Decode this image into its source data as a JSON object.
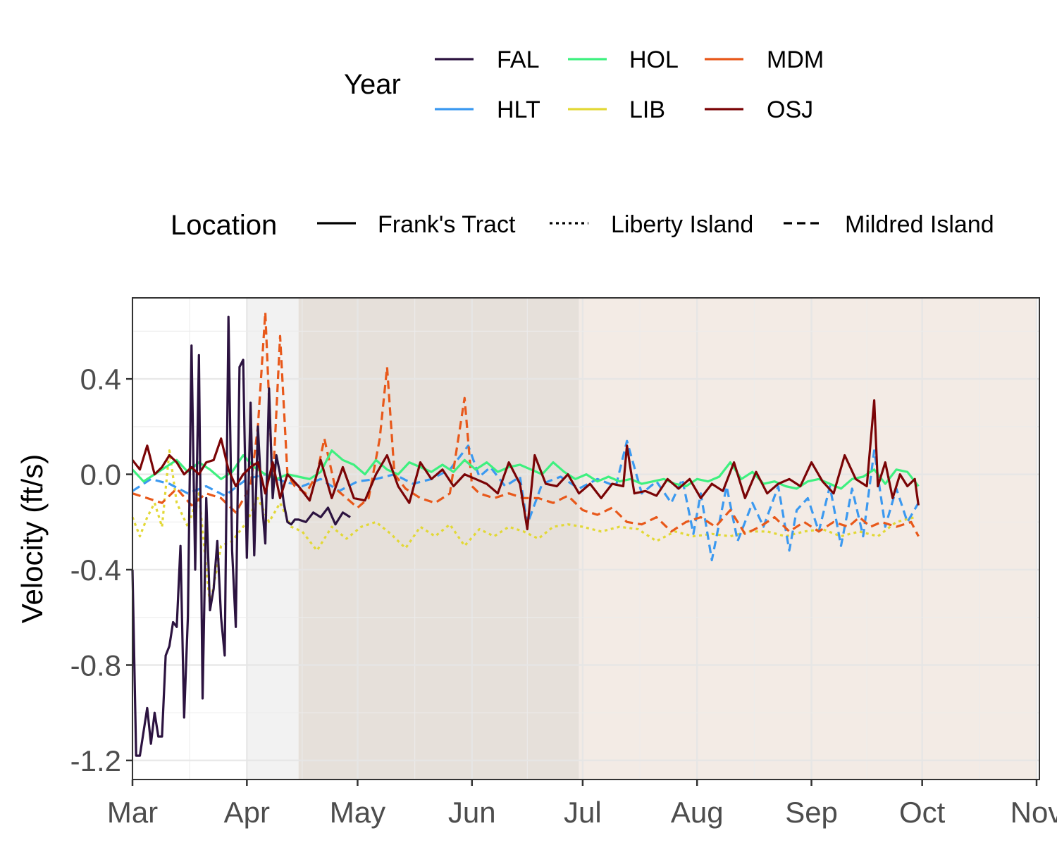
{
  "chart_data": {
    "type": "line",
    "xlabel": "",
    "ylabel": "Velocity (ft/s)",
    "ylim": [
      -1.28,
      0.74
    ],
    "xlim": [
      "Mar 1",
      "Nov 1"
    ],
    "x_ticks": [
      "Mar",
      "Apr",
      "May",
      "Jun",
      "Jul",
      "Aug",
      "Sep",
      "Oct",
      "Nov"
    ],
    "y_ticks": [
      "0.4",
      "0.0",
      "-0.4",
      "-0.8",
      "-1.2"
    ],
    "y_tick_values": [
      0.4,
      0.0,
      -0.4,
      -0.8,
      -1.2
    ],
    "grid": true,
    "legend_position": "top",
    "background_periods": [
      {
        "from": "Apr 1",
        "to": "Apr 15",
        "color": "#f2f2f2"
      },
      {
        "from": "Apr 15",
        "to": "Jun 30",
        "color": "#e6e0da"
      },
      {
        "from": "Jun 30",
        "to": "Nov 1",
        "color": "#f3ebe5"
      }
    ],
    "legends": [
      {
        "title": "Year",
        "entries": [
          {
            "label": "FAL",
            "color": "#2c1340"
          },
          {
            "label": "HOL",
            "color": "#3ef07f"
          },
          {
            "label": "MDM",
            "color": "#e8581a"
          },
          {
            "label": "HLT",
            "color": "#3b99f0"
          },
          {
            "label": "LIB",
            "color": "#e2d836"
          },
          {
            "label": "OSJ",
            "color": "#7a0406"
          }
        ]
      },
      {
        "title": "Location",
        "entries": [
          {
            "label": "Frank's Tract",
            "linetype": "solid"
          },
          {
            "label": "Liberty Island",
            "linetype": "dotted"
          },
          {
            "label": "Mildred Island",
            "linetype": "dashed"
          }
        ]
      }
    ],
    "series": [
      {
        "year": "LIB",
        "location": "Liberty Island",
        "color": "#e2d836",
        "linetype": "dotted",
        "x": [
          "Mar 1",
          "Mar 3",
          "Mar 5",
          "Mar 7",
          "Mar 9",
          "Mar 11",
          "Mar 13",
          "Mar 16",
          "Mar 19",
          "Mar 22",
          "Mar 25",
          "Mar 28",
          "Apr 1",
          "Apr 4",
          "Apr 7",
          "Apr 10",
          "Apr 13",
          "Apr 16",
          "Apr 20",
          "Apr 24",
          "Apr 28",
          "May 2",
          "May 6",
          "May 10",
          "May 14",
          "May 18",
          "May 22",
          "May 26",
          "May 30",
          "Jun 3",
          "Jun 7",
          "Jun 11",
          "Jun 15",
          "Jun 19",
          "Jun 23",
          "Jun 27",
          "Jul 1",
          "Jul 6",
          "Jul 11",
          "Jul 16",
          "Jul 21",
          "Jul 26",
          "Jul 31",
          "Aug 5",
          "Aug 10",
          "Aug 15",
          "Aug 20",
          "Aug 25",
          "Aug 30",
          "Sep 4",
          "Sep 9",
          "Sep 14",
          "Sep 19",
          "Sep 24",
          "Sep 29"
        ],
        "y": [
          -0.18,
          -0.26,
          -0.18,
          -0.12,
          -0.22,
          0.1,
          -0.12,
          -0.22,
          -0.08,
          -0.55,
          -0.3,
          -0.28,
          -0.2,
          -0.1,
          -0.2,
          -0.12,
          -0.22,
          -0.24,
          -0.32,
          -0.22,
          -0.27,
          -0.22,
          -0.2,
          -0.25,
          -0.31,
          -0.22,
          -0.26,
          -0.21,
          -0.3,
          -0.23,
          -0.26,
          -0.22,
          -0.24,
          -0.27,
          -0.22,
          -0.21,
          -0.22,
          -0.24,
          -0.22,
          -0.23,
          -0.28,
          -0.24,
          -0.26,
          -0.25,
          -0.26,
          -0.24,
          -0.24,
          -0.26,
          -0.24,
          -0.23,
          -0.26,
          -0.24,
          -0.26,
          -0.2,
          -0.18
        ]
      },
      {
        "year": "HLT",
        "location": "Mildred Island",
        "color": "#3b99f0",
        "linetype": "dashed",
        "x": [
          "Mar 1",
          "Mar 6",
          "Mar 11",
          "Mar 16",
          "Mar 21",
          "Mar 26",
          "Apr 1",
          "Apr 6",
          "Apr 11",
          "Apr 16",
          "Apr 21",
          "Apr 26",
          "May 1",
          "May 6",
          "May 11",
          "May 16",
          "May 21",
          "May 26",
          "May 31",
          "Jun 3",
          "Jun 6",
          "Jun 10",
          "Jun 14",
          "Jun 16",
          "Jun 20",
          "Jun 25",
          "Jun 30",
          "Jul 5",
          "Jul 10",
          "Jul 13",
          "Jul 17",
          "Jul 21",
          "Jul 25",
          "Jul 28",
          "Jul 31",
          "Aug 2",
          "Aug 5",
          "Aug 9",
          "Aug 12",
          "Aug 16",
          "Aug 19",
          "Aug 23",
          "Aug 26",
          "Aug 28",
          "Aug 31",
          "Sep 3",
          "Sep 6",
          "Sep 9",
          "Sep 12",
          "Sep 15",
          "Sep 18",
          "Sep 21",
          "Sep 24",
          "Sep 27",
          "Sep 30"
        ],
        "y": [
          -0.07,
          -0.02,
          -0.04,
          -0.08,
          -0.05,
          -0.09,
          -0.02,
          0.0,
          -0.03,
          -0.05,
          -0.02,
          -0.07,
          -0.03,
          -0.02,
          0.0,
          -0.04,
          -0.02,
          0.02,
          0.12,
          -0.01,
          0.03,
          -0.05,
          -0.01,
          -0.21,
          -0.04,
          -0.01,
          -0.06,
          -0.02,
          -0.05,
          0.14,
          -0.08,
          -0.03,
          -0.12,
          -0.02,
          -0.25,
          -0.08,
          -0.36,
          -0.05,
          -0.28,
          -0.12,
          -0.22,
          -0.05,
          -0.32,
          -0.15,
          -0.1,
          -0.24,
          -0.05,
          -0.3,
          -0.06,
          -0.26,
          0.1,
          -0.22,
          -0.06,
          -0.2,
          -0.12
        ]
      },
      {
        "year": "MDM",
        "location": "Mildred Island",
        "color": "#e8581a",
        "linetype": "dashed",
        "x": [
          "Mar 1",
          "Mar 5",
          "Mar 9",
          "Mar 13",
          "Mar 17",
          "Mar 21",
          "Mar 25",
          "Mar 29",
          "Apr 2",
          "Apr 4",
          "Apr 6",
          "Apr 8",
          "Apr 10",
          "Apr 12",
          "Apr 14",
          "Apr 17",
          "Apr 20",
          "Apr 22",
          "Apr 25",
          "Apr 28",
          "May 1",
          "May 4",
          "May 7",
          "May 9",
          "May 11",
          "May 14",
          "May 18",
          "May 22",
          "May 26",
          "May 30",
          "Jun 1",
          "Jun 3",
          "Jun 7",
          "Jun 11",
          "Jun 15",
          "Jun 19",
          "Jun 23",
          "Jun 27",
          "Jul 1",
          "Jul 5",
          "Jul 9",
          "Jul 13",
          "Jul 17",
          "Jul 21",
          "Jul 25",
          "Jul 29",
          "Aug 2",
          "Aug 6",
          "Aug 10",
          "Aug 14",
          "Aug 18",
          "Aug 22",
          "Aug 26",
          "Aug 30",
          "Sep 3",
          "Sep 7",
          "Sep 11",
          "Sep 14",
          "Sep 17",
          "Sep 20",
          "Sep 24",
          "Sep 28",
          "Sep 30"
        ],
        "y": [
          -0.08,
          -0.1,
          -0.12,
          -0.06,
          -0.13,
          -0.08,
          -0.1,
          -0.16,
          -0.05,
          0.2,
          0.68,
          -0.05,
          0.58,
          0.0,
          -0.05,
          -0.08,
          0.0,
          0.15,
          -0.06,
          -0.1,
          -0.14,
          -0.1,
          0.15,
          0.45,
          0.0,
          -0.06,
          -0.1,
          -0.12,
          -0.08,
          0.32,
          -0.05,
          -0.08,
          -0.1,
          -0.08,
          -0.1,
          -0.1,
          -0.12,
          -0.09,
          -0.15,
          -0.17,
          -0.14,
          -0.2,
          -0.21,
          -0.18,
          -0.24,
          -0.2,
          -0.18,
          -0.22,
          -0.15,
          -0.25,
          -0.22,
          -0.18,
          -0.24,
          -0.2,
          -0.24,
          -0.2,
          -0.22,
          -0.18,
          -0.22,
          -0.2,
          -0.22,
          -0.2,
          -0.26
        ]
      },
      {
        "year": "HOL",
        "location": "Frank's Tract",
        "color": "#3ef07f",
        "linetype": "solid",
        "x": [
          "Mar 1",
          "Mar 4",
          "Mar 7",
          "Mar 10",
          "Mar 13",
          "Mar 16",
          "Mar 19",
          "Mar 22",
          "Mar 25",
          "Mar 28",
          "Mar 31",
          "Apr 3",
          "Apr 6",
          "Apr 9",
          "Apr 12",
          "Apr 15",
          "Apr 18",
          "Apr 21",
          "Apr 24",
          "Apr 27",
          "Apr 30",
          "May 3",
          "May 6",
          "May 9",
          "May 12",
          "May 15",
          "May 18",
          "May 21",
          "May 24",
          "May 27",
          "May 30",
          "Jun 2",
          "Jun 5",
          "Jun 8",
          "Jun 11",
          "Jun 14",
          "Jun 17",
          "Jun 20",
          "Jun 23",
          "Jun 26",
          "Jun 29",
          "Jul 2",
          "Jul 5",
          "Jul 8",
          "Jul 11",
          "Jul 14",
          "Jul 17",
          "Jul 20",
          "Jul 23",
          "Jul 26",
          "Jul 29",
          "Aug 1",
          "Aug 4",
          "Aug 7",
          "Aug 10",
          "Aug 13",
          "Aug 16",
          "Aug 19",
          "Aug 22",
          "Aug 25",
          "Aug 28",
          "Aug 31",
          "Sep 3",
          "Sep 6",
          "Sep 9",
          "Sep 12",
          "Sep 15",
          "Sep 18",
          "Sep 21",
          "Sep 24",
          "Sep 27",
          "Sep 30"
        ],
        "y": [
          0.02,
          -0.03,
          0.0,
          0.03,
          0.06,
          0.01,
          0.05,
          0.02,
          -0.02,
          0.01,
          0.08,
          0.03,
          0.0,
          -0.02,
          0.0,
          -0.01,
          -0.02,
          0.01,
          0.1,
          0.06,
          0.04,
          0.0,
          0.06,
          0.02,
          0.0,
          0.05,
          0.03,
          0.01,
          0.04,
          0.01,
          0.06,
          0.02,
          0.05,
          0.01,
          0.03,
          0.04,
          0.02,
          0.0,
          0.05,
          0.01,
          -0.02,
          0.0,
          -0.03,
          -0.01,
          -0.03,
          -0.02,
          -0.04,
          -0.03,
          -0.02,
          -0.04,
          -0.05,
          -0.02,
          -0.03,
          -0.01,
          0.05,
          -0.02,
          0.01,
          -0.04,
          -0.03,
          -0.05,
          -0.06,
          -0.03,
          -0.02,
          -0.04,
          -0.06,
          -0.02,
          -0.01,
          0.02,
          -0.04,
          0.02,
          0.01,
          -0.05
        ]
      },
      {
        "year": "FAL",
        "location": "Frank's Tract",
        "color": "#2c1340",
        "linetype": "solid",
        "x": [
          "Mar 1",
          "Mar 2",
          "Mar 3",
          "Mar 5",
          "Mar 6",
          "Mar 7",
          "Mar 8",
          "Mar 9",
          "Mar 10",
          "Mar 11",
          "Mar 12",
          "Mar 13",
          "Mar 14",
          "Mar 15",
          "Mar 16",
          "Mar 17",
          "Mar 18",
          "Mar 19",
          "Mar 20",
          "Mar 21",
          "Mar 22",
          "Mar 23",
          "Mar 24",
          "Mar 25",
          "Mar 26",
          "Mar 27",
          "Mar 28",
          "Mar 29",
          "Mar 30",
          "Mar 31",
          "Apr 1",
          "Apr 2",
          "Apr 3",
          "Apr 4",
          "Apr 5",
          "Apr 6",
          "Apr 7",
          "Apr 8",
          "Apr 9",
          "Apr 10",
          "Apr 11",
          "Apr 12",
          "Apr 13",
          "Apr 14",
          "Apr 15",
          "Apr 17",
          "Apr 19",
          "Apr 21",
          "Apr 23",
          "Apr 25",
          "Apr 27",
          "Apr 29"
        ],
        "y": [
          -0.4,
          -1.18,
          -1.18,
          -0.98,
          -1.13,
          -1.0,
          -1.1,
          -1.1,
          -0.76,
          -0.72,
          -0.62,
          -0.64,
          -0.3,
          -1.02,
          -0.6,
          0.54,
          -0.4,
          0.5,
          -0.94,
          -0.1,
          -0.57,
          -0.48,
          -0.28,
          -0.6,
          -0.76,
          0.66,
          -0.32,
          -0.64,
          0.45,
          0.48,
          -0.35,
          0.3,
          -0.34,
          0.2,
          -0.1,
          -0.29,
          0.36,
          -0.1,
          0.08,
          0.0,
          -0.12,
          -0.2,
          -0.21,
          -0.19,
          -0.19,
          -0.2,
          -0.16,
          -0.18,
          -0.14,
          -0.21,
          -0.16,
          -0.18
        ]
      },
      {
        "year": "OSJ",
        "location": "Frank's Tract",
        "color": "#7a0406",
        "linetype": "solid",
        "x": [
          "Mar 1",
          "Mar 3",
          "Mar 5",
          "Mar 7",
          "Mar 9",
          "Mar 11",
          "Mar 13",
          "Mar 15",
          "Mar 17",
          "Mar 19",
          "Mar 21",
          "Mar 23",
          "Mar 25",
          "Mar 27",
          "Mar 29",
          "Mar 31",
          "Apr 2",
          "Apr 4",
          "Apr 6",
          "Apr 8",
          "Apr 10",
          "Apr 12",
          "Apr 15",
          "Apr 18",
          "Apr 21",
          "Apr 24",
          "Apr 27",
          "Apr 30",
          "May 3",
          "May 6",
          "May 9",
          "May 12",
          "May 15",
          "May 18",
          "May 21",
          "May 24",
          "May 27",
          "May 30",
          "Jun 2",
          "Jun 5",
          "Jun 8",
          "Jun 11",
          "Jun 14",
          "Jun 16",
          "Jun 18",
          "Jun 21",
          "Jun 24",
          "Jun 27",
          "Jun 30",
          "Jul 3",
          "Jul 6",
          "Jul 9",
          "Jul 12",
          "Jul 13",
          "Jul 15",
          "Jul 18",
          "Jul 21",
          "Jul 24",
          "Jul 27",
          "Jul 30",
          "Aug 2",
          "Aug 5",
          "Aug 8",
          "Aug 11",
          "Aug 14",
          "Aug 17",
          "Aug 20",
          "Aug 23",
          "Aug 26",
          "Aug 29",
          "Sep 1",
          "Sep 4",
          "Sep 7",
          "Sep 10",
          "Sep 13",
          "Sep 16",
          "Sep 18",
          "Sep 19",
          "Sep 21",
          "Sep 23",
          "Sep 25",
          "Sep 27",
          "Sep 29",
          "Sep 30"
        ],
        "y": [
          0.06,
          0.02,
          0.12,
          0.0,
          0.03,
          0.08,
          0.05,
          0.0,
          0.03,
          0.0,
          0.05,
          0.06,
          0.15,
          0.02,
          -0.05,
          0.0,
          0.03,
          0.05,
          -0.08,
          0.05,
          -0.1,
          0.0,
          -0.05,
          -0.11,
          0.06,
          -0.1,
          0.03,
          -0.1,
          -0.11,
          0.0,
          0.08,
          -0.05,
          -0.12,
          0.05,
          -0.02,
          0.02,
          -0.05,
          0.0,
          -0.02,
          -0.04,
          -0.08,
          0.05,
          -0.04,
          -0.23,
          0.08,
          -0.04,
          -0.05,
          0.0,
          -0.08,
          -0.04,
          -0.1,
          -0.04,
          -0.05,
          0.12,
          -0.08,
          -0.07,
          -0.09,
          -0.02,
          -0.06,
          -0.02,
          -0.1,
          -0.04,
          -0.07,
          0.05,
          -0.1,
          0.01,
          -0.08,
          -0.04,
          -0.02,
          -0.05,
          0.05,
          -0.03,
          -0.08,
          0.08,
          -0.02,
          -0.05,
          0.31,
          -0.05,
          0.05,
          -0.1,
          0.0,
          -0.05,
          -0.02,
          -0.13
        ]
      }
    ]
  }
}
